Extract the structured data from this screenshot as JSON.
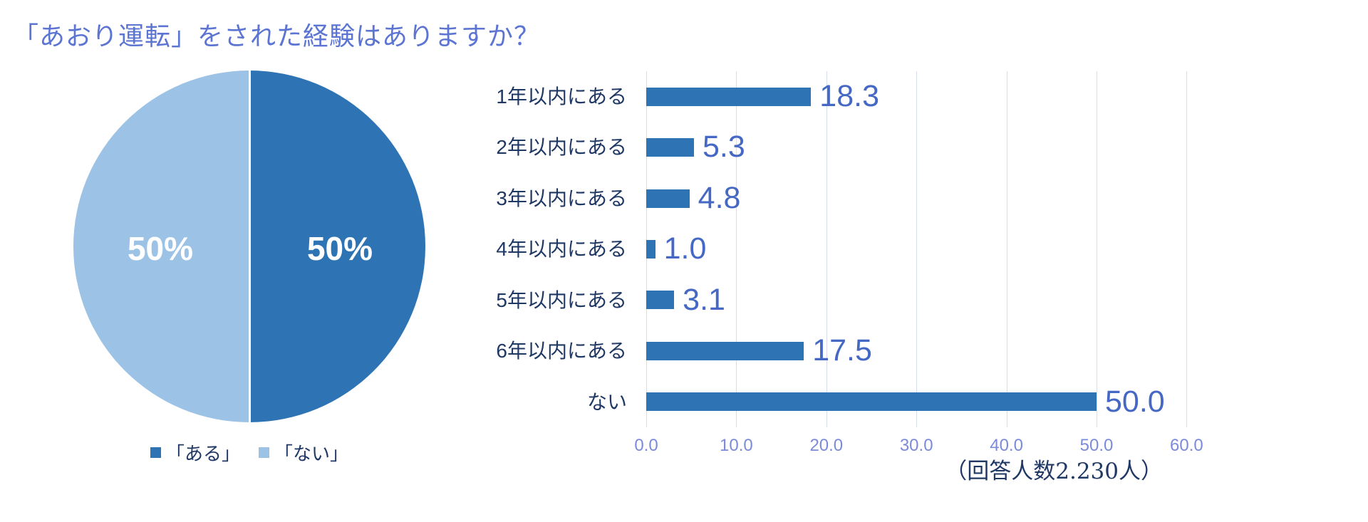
{
  "title": "「あおり運転」をされた経験はありますか？",
  "footnote": "（回答人数2.230人）",
  "colors": {
    "dark_blue": "#2E74B5",
    "light_blue": "#9CC3E6",
    "title_text": "#5C74D2",
    "category_text": "#1F3864",
    "value_text": "#4468C4",
    "tick_text": "#7B8BD9",
    "gridline": "#D5DDF1",
    "pie_label_text": "#FFFFFF"
  },
  "chart_data": [
    {
      "type": "pie",
      "labels": [
        "「ある」",
        "「ない」"
      ],
      "values": [
        50,
        50
      ],
      "slice_labels": [
        "50%",
        "50%"
      ],
      "colors": [
        "#2E74B5",
        "#9CC3E6"
      ],
      "legend_position": "bottom",
      "note": "right half dark = ある, left half light = ない, white divider line"
    },
    {
      "type": "bar",
      "orientation": "horizontal",
      "categories": [
        "1年以内にある",
        "2年以内にある",
        "3年以内にある",
        "4年以内にある",
        "5年以内にある",
        "6年以内にある",
        "ない"
      ],
      "values": [
        18.3,
        5.3,
        4.8,
        1.0,
        3.1,
        17.5,
        50.0
      ],
      "value_labels": [
        "18.3",
        "5.3",
        "4.8",
        "1.0",
        "3.1",
        "17.5",
        "50.0"
      ],
      "xlim": [
        0,
        60
      ],
      "x_ticks": [
        "0.0",
        "10.0",
        "20.0",
        "30.0",
        "40.0",
        "50.0",
        "60.0"
      ],
      "grid": true,
      "bar_color": "#2E74B5"
    }
  ]
}
